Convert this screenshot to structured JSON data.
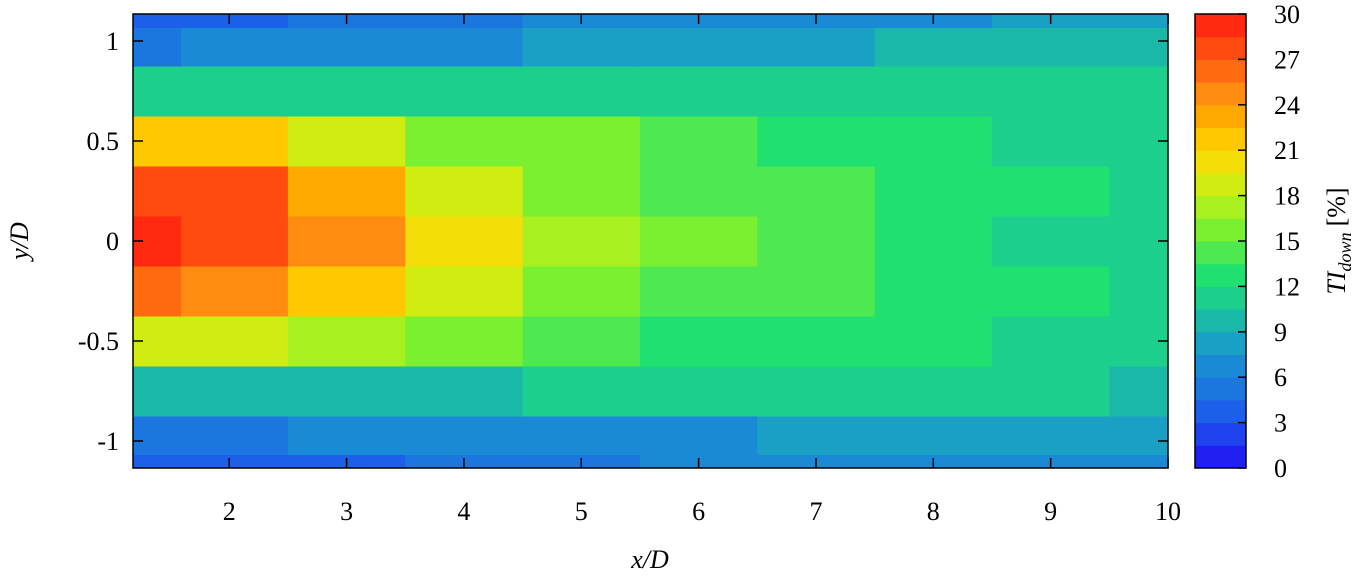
{
  "chart_data": {
    "type": "contour",
    "xlabel": "x/D",
    "ylabel": "y/D",
    "colorbar_label": "TI",
    "colorbar_label_sub": "down",
    "colorbar_label_unit": "[%]",
    "x": [
      1.18,
      2,
      3,
      4,
      5,
      6,
      7,
      8,
      9,
      10
    ],
    "y": [
      -1.135,
      -1,
      -0.75,
      -0.5,
      -0.25,
      0,
      0.25,
      0.5,
      0.75,
      1,
      1.135
    ],
    "z": [
      [
        4,
        4,
        4,
        5,
        5,
        6,
        6,
        7,
        7,
        7
      ],
      [
        5,
        5,
        6,
        6,
        7,
        7,
        8,
        8,
        8,
        8
      ],
      [
        9,
        9,
        10,
        10,
        11,
        11,
        11,
        10.5,
        10.5,
        10
      ],
      [
        19,
        18,
        17,
        15,
        14,
        13,
        12.5,
        12,
        11.5,
        11
      ],
      [
        26,
        25,
        22,
        19,
        16,
        14.5,
        13.5,
        12.5,
        12,
        11
      ],
      [
        29,
        28,
        24,
        20,
        17,
        15,
        13.5,
        12.5,
        11.5,
        11
      ],
      [
        28,
        27,
        23,
        19,
        16,
        14.5,
        13.5,
        12.5,
        12,
        11
      ],
      [
        22,
        21,
        19,
        16,
        15,
        13.5,
        12.5,
        12,
        11.5,
        11
      ],
      [
        11,
        11,
        11,
        11,
        11,
        11,
        11,
        11,
        10.5,
        10.5
      ],
      [
        5,
        6,
        6,
        7,
        8,
        8,
        8,
        9,
        9,
        9
      ],
      [
        4,
        4,
        5,
        5,
        6,
        6,
        7,
        7,
        8,
        8
      ]
    ],
    "xlim": [
      1.18,
      10
    ],
    "ylim": [
      -1.135,
      1.135
    ],
    "xticks": [
      2,
      3,
      4,
      5,
      6,
      7,
      8,
      9,
      10
    ],
    "yticks": [
      -1,
      -0.5,
      0,
      0.5,
      1
    ],
    "zlim": [
      0,
      30
    ],
    "zticks": [
      0,
      3,
      6,
      9,
      12,
      15,
      18,
      21,
      24,
      27,
      30
    ],
    "colors": [
      "#2020f0",
      "#1f44ee",
      "#1c5fe8",
      "#1b76e0",
      "#1a8ad6",
      "#1aa0c4",
      "#1ab8a8",
      "#1ccf8c",
      "#20e070",
      "#4ee850",
      "#7af030",
      "#a8f020",
      "#d0ec10",
      "#f4de08",
      "#ffc800",
      "#ffa800",
      "#ff8c10",
      "#ff6a10",
      "#ff4a10",
      "#ff2a10"
    ]
  }
}
